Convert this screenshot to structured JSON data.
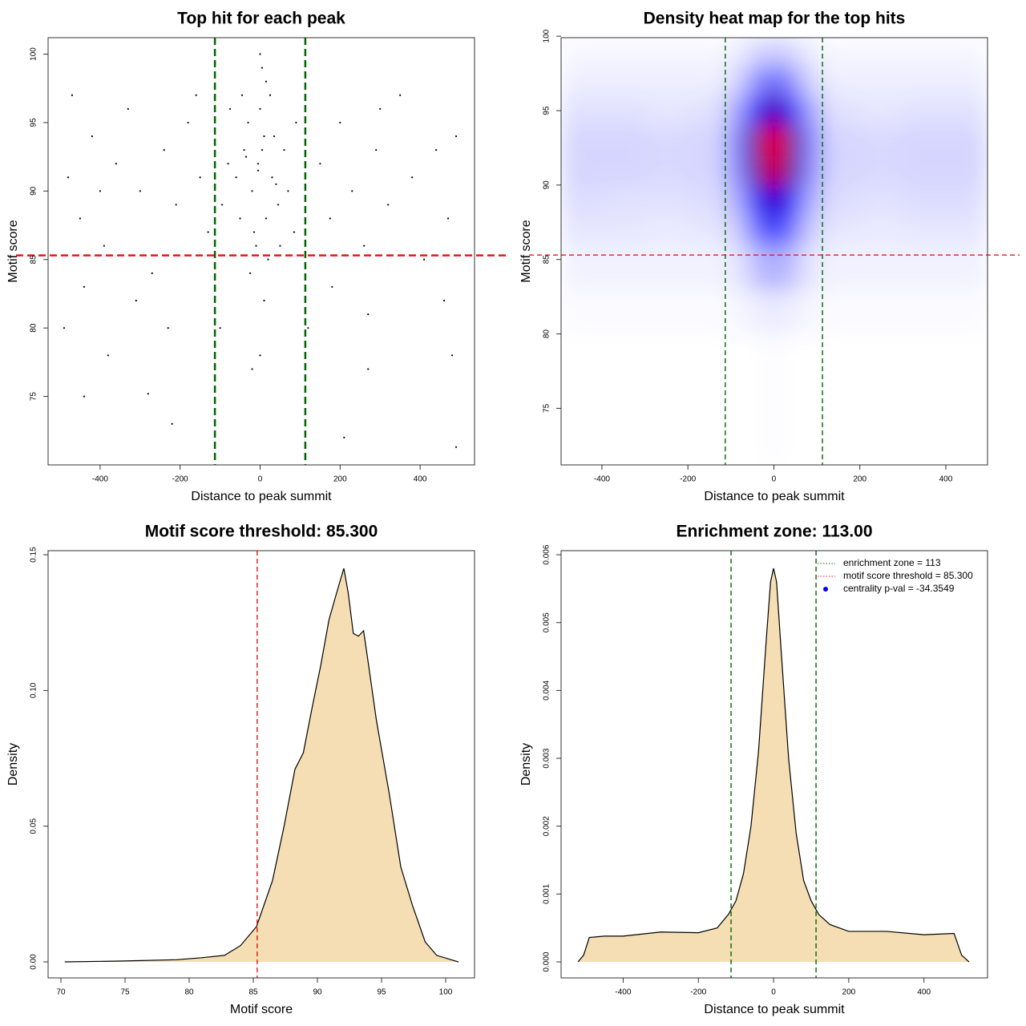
{
  "chart_data": [
    {
      "type": "scatter",
      "title": "Top hit for each peak",
      "xlabel": "Distance to peak summit",
      "ylabel": "Motif score",
      "x": [
        -5,
        10,
        -20,
        30,
        0,
        -40,
        45,
        15,
        -10,
        60,
        -60,
        25,
        -30,
        5,
        0,
        -15,
        35,
        -50,
        70,
        -80,
        90,
        -95,
        20,
        -25,
        10,
        0,
        50,
        -45,
        15,
        -5,
        5,
        -35,
        40,
        85,
        -75,
        -480,
        -450,
        -420,
        -390,
        -360,
        -330,
        -300,
        -270,
        -240,
        -210,
        -180,
        -150,
        -130,
        150,
        175,
        200,
        230,
        260,
        290,
        320,
        350,
        380,
        410,
        440,
        470,
        490,
        -470,
        -440,
        -400,
        -310,
        -160,
        180,
        300,
        460,
        -230,
        270,
        -490,
        480,
        -440,
        -280,
        -220,
        -380,
        210,
        270,
        490,
        -100,
        120,
        -20
      ],
      "y": [
        92,
        94,
        90,
        91,
        96,
        93,
        89,
        88,
        86,
        93,
        91,
        97,
        95,
        99,
        100,
        87,
        94,
        88,
        90,
        92,
        95,
        89,
        85,
        84,
        82,
        78,
        86,
        97,
        98,
        91.5,
        93,
        92.5,
        90.5,
        87,
        96,
        91,
        88,
        94,
        86,
        92,
        96,
        90,
        84,
        93,
        89,
        95,
        91,
        87,
        92,
        88,
        95,
        90,
        86,
        93,
        89,
        97,
        91,
        85,
        93,
        88,
        94,
        97,
        83,
        90,
        82,
        97,
        83,
        96,
        82,
        80,
        81,
        80,
        78,
        75,
        75.2,
        73,
        78,
        72,
        77,
        71.3,
        80,
        80,
        77
      ],
      "color": "#000000",
      "xlim": [
        -530,
        536
      ],
      "ylim": [
        70.0,
        101.2
      ],
      "xticks": [
        -400,
        -200,
        0,
        200,
        400
      ],
      "yticks": [
        75,
        80,
        85,
        90,
        95,
        100
      ],
      "reference_lines": [
        {
          "axis": "x",
          "value": -113,
          "color": "#006400"
        },
        {
          "axis": "x",
          "value": 113,
          "color": "#006400"
        },
        {
          "axis": "y",
          "value": 85.3,
          "color": "#e41a1c"
        }
      ]
    },
    {
      "type": "heatmap",
      "title": "Density heat map for the top hits",
      "xlabel": "Distance to peak summit",
      "ylabel": "Motif score",
      "x_bins": [
        -495,
        -400,
        -300,
        -200,
        -110,
        -60,
        -20,
        20,
        60,
        110,
        200,
        300,
        400,
        497
      ],
      "y_bins": [
        71.2,
        80,
        83,
        86,
        88,
        90,
        92,
        94,
        96,
        98,
        99.9
      ],
      "values": [
        [
          0,
          0,
          0,
          0,
          0,
          0,
          0.01,
          0,
          0,
          0,
          0,
          0,
          0
        ],
        [
          0.01,
          0.01,
          0.01,
          0.01,
          0.02,
          0.04,
          0.05,
          0.04,
          0.02,
          0.01,
          0.01,
          0.01,
          0.01
        ],
        [
          0.03,
          0.03,
          0.03,
          0.03,
          0.06,
          0.15,
          0.2,
          0.15,
          0.06,
          0.03,
          0.03,
          0.03,
          0.03
        ],
        [
          0.06,
          0.06,
          0.05,
          0.06,
          0.12,
          0.36,
          0.45,
          0.36,
          0.12,
          0.06,
          0.05,
          0.06,
          0.06
        ],
        [
          0.08,
          0.07,
          0.07,
          0.08,
          0.2,
          0.56,
          0.7,
          0.56,
          0.2,
          0.08,
          0.07,
          0.08,
          0.08
        ],
        [
          0.1,
          0.1,
          0.09,
          0.1,
          0.28,
          0.76,
          0.95,
          0.76,
          0.28,
          0.1,
          0.09,
          0.1,
          0.1
        ],
        [
          0.1,
          0.1,
          0.09,
          0.1,
          0.3,
          0.8,
          1.0,
          0.8,
          0.3,
          0.1,
          0.09,
          0.1,
          0.1
        ],
        [
          0.07,
          0.07,
          0.06,
          0.07,
          0.22,
          0.6,
          0.75,
          0.6,
          0.22,
          0.07,
          0.06,
          0.07,
          0.07
        ],
        [
          0.04,
          0.04,
          0.04,
          0.04,
          0.1,
          0.28,
          0.35,
          0.28,
          0.1,
          0.04,
          0.04,
          0.04,
          0.04
        ],
        [
          0.02,
          0.02,
          0.02,
          0.02,
          0.04,
          0.1,
          0.12,
          0.1,
          0.04,
          0.02,
          0.02,
          0.02,
          0.02
        ]
      ],
      "colors": [
        "#ffffff",
        "#0000ff",
        "#ff0000"
      ],
      "xlim": [
        -495,
        497
      ],
      "ylim": [
        71.2,
        99.9
      ],
      "xticks": [
        -400,
        -200,
        0,
        200,
        400
      ],
      "yticks": [
        75,
        80,
        85,
        90,
        95,
        100
      ],
      "reference_lines": [
        {
          "axis": "x",
          "value": -113,
          "color": "#006400"
        },
        {
          "axis": "x",
          "value": 113,
          "color": "#006400"
        },
        {
          "axis": "y",
          "value": 85.3,
          "color": "#e41a1c"
        }
      ]
    },
    {
      "type": "area",
      "title": "Motif score threshold: 85.300",
      "xlabel": "Motif score",
      "ylabel": "Density",
      "x": [
        70.3,
        74.6,
        79,
        80.9,
        82.75,
        84,
        85.25,
        86.5,
        87.4,
        88.25,
        88.9,
        89.6,
        90.25,
        90.9,
        91.5,
        92.06,
        92.4,
        92.8,
        93.2,
        93.6,
        94,
        94.6,
        95.6,
        96.5,
        97.4,
        98.4,
        99.3,
        101
      ],
      "y": [
        0,
        0.0003,
        0.0008,
        0.0015,
        0.0024,
        0.006,
        0.013,
        0.03,
        0.05,
        0.071,
        0.077,
        0.094,
        0.109,
        0.126,
        0.136,
        0.145,
        0.136,
        0.121,
        0.12,
        0.122,
        0.109,
        0.089,
        0.062,
        0.035,
        0.021,
        0.0074,
        0.0024,
        0
      ],
      "color": "#f5deb3",
      "xlim": [
        69.0,
        102.25
      ],
      "ylim": [
        -0.0059,
        0.1515
      ],
      "xticks": [
        70,
        75,
        80,
        85,
        90,
        95,
        100
      ],
      "yticks": [
        {
          "value": 0,
          "label": "0.00"
        },
        {
          "value": 0.05,
          "label": "0.05"
        },
        {
          "value": 0.1,
          "label": "0.10"
        },
        {
          "value": 0.15,
          "label": "0.15"
        }
      ],
      "reference_lines": [
        {
          "axis": "x",
          "value": 85.3,
          "color": "#e41a1c"
        }
      ]
    },
    {
      "type": "area",
      "title": "Enrichment zone: 113.00",
      "xlabel": "Distance to peak summit",
      "ylabel": "Density",
      "x": [
        -520,
        -505,
        -490,
        -450,
        -400,
        -300,
        -200,
        -150,
        -120,
        -100,
        -80,
        -60,
        -40,
        -20,
        -8,
        0,
        8,
        20,
        40,
        60,
        80,
        100,
        120,
        150,
        200,
        300,
        400,
        480,
        500,
        520
      ],
      "y": [
        0,
        0.0001,
        0.00036,
        0.00038,
        0.00038,
        0.00044,
        0.00043,
        0.0005,
        0.0007,
        0.0009,
        0.0013,
        0.002,
        0.0031,
        0.0047,
        0.0056,
        0.0058,
        0.0056,
        0.0046,
        0.003,
        0.0019,
        0.0012,
        0.0009,
        0.0007,
        0.00055,
        0.00045,
        0.00045,
        0.0004,
        0.00042,
        0.0001,
        0
      ],
      "color": "#f5deb3",
      "xlim": [
        -565,
        569
      ],
      "ylim": [
        -0.000236,
        0.00606
      ],
      "xticks": [
        -400,
        -200,
        0,
        200,
        400
      ],
      "yticks": [
        {
          "value": 0,
          "label": "0.000"
        },
        {
          "value": 0.001,
          "label": "0.001"
        },
        {
          "value": 0.002,
          "label": "0.002"
        },
        {
          "value": 0.003,
          "label": "0.003"
        },
        {
          "value": 0.004,
          "label": "0.004"
        },
        {
          "value": 0.005,
          "label": "0.005"
        },
        {
          "value": 0.006,
          "label": "0.006"
        }
      ],
      "reference_lines": [
        {
          "axis": "x",
          "value": -113,
          "color": "#006400"
        },
        {
          "axis": "x",
          "value": 113,
          "color": "#006400"
        }
      ],
      "legend_position": "top-right",
      "legend": [
        {
          "label": "enrichment zone = 113",
          "color": "#006400",
          "style": "dotted"
        },
        {
          "label": "motif score threshold = 85.300",
          "color": "#e41a1c",
          "style": "dotted"
        },
        {
          "label": "centrality p-val = -34.3549",
          "color": "#0000ff",
          "style": "point"
        }
      ]
    }
  ]
}
